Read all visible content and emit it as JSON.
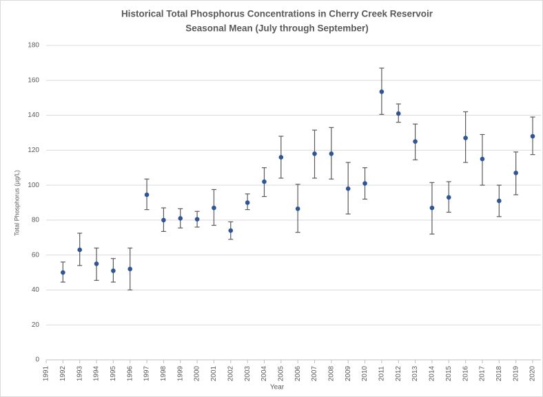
{
  "chart_data": {
    "type": "scatter",
    "title": "Historical Total Phosphorus Concentrations in Cherry Creek Reservoir",
    "subtitle": "Seasonal Mean (July through September)",
    "x_label": "Year",
    "y_label": "Total Phosphorus (µg/L)",
    "categories": [
      "1991",
      "1992",
      "1993",
      "1994",
      "1995",
      "1996",
      "1997",
      "1998",
      "1999",
      "2000",
      "2001",
      "2002",
      "2003",
      "2004",
      "2005",
      "2006",
      "2007",
      "2008",
      "2009",
      "2010",
      "2011",
      "2012",
      "2013",
      "2014",
      "2015",
      "2016",
      "2017",
      "2018",
      "2019",
      "2020"
    ],
    "series": [
      {
        "name": "Seasonal Mean",
        "color": "#2f5597",
        "values": [
          null,
          50,
          63,
          55,
          51,
          52,
          94.5,
          80,
          81,
          80.5,
          87,
          74,
          90,
          102,
          116,
          86.5,
          118,
          118,
          98,
          101,
          153.5,
          141,
          125,
          87,
          93,
          127,
          115,
          91,
          107,
          128
        ],
        "upper": [
          null,
          56,
          72.5,
          64,
          58,
          64,
          103.5,
          87,
          86.5,
          85,
          97.5,
          79,
          95,
          110,
          128,
          100.5,
          131.5,
          133,
          113,
          110,
          167,
          146.5,
          135,
          101.5,
          102,
          142,
          129,
          100,
          119,
          139
        ],
        "lower": [
          null,
          44.5,
          54,
          45.5,
          44.5,
          40,
          86,
          73.5,
          75.5,
          76,
          77,
          69,
          86,
          93.5,
          104,
          73,
          104,
          103.5,
          83.5,
          92,
          140.5,
          136,
          114.5,
          72,
          84.5,
          113,
          100,
          82,
          94.5,
          117.5
        ]
      }
    ],
    "error_color": "#595959",
    "ylim": [
      0,
      180
    ],
    "yticks": [
      0,
      20,
      40,
      60,
      80,
      100,
      120,
      140,
      160,
      180
    ],
    "grid": true
  }
}
